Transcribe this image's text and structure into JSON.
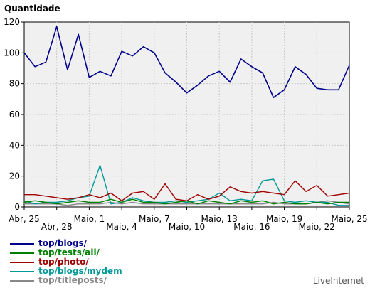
{
  "footer": {
    "brand": "LiveInternet"
  },
  "chart_data": {
    "type": "line",
    "ylabel": "Quantidade",
    "ylim": [
      0,
      120
    ],
    "yticks": [
      0,
      20,
      40,
      60,
      80,
      100,
      120
    ],
    "grid": true,
    "legend_position": "bottom-left",
    "x_tick_labels": [
      "Abr, 25",
      "Abr, 28",
      "Maio, 1",
      "Maio, 4",
      "Maio, 7",
      "Maio, 10",
      "Maio, 13",
      "Maio, 16",
      "Maio, 19",
      "Maio, 22",
      "Maio, 25"
    ],
    "x_tick_label_rows": [
      0,
      1,
      0,
      1,
      0,
      1,
      0,
      1,
      0,
      1,
      0
    ],
    "x_tick_indices": [
      0,
      3,
      6,
      9,
      12,
      15,
      18,
      21,
      24,
      27,
      30
    ],
    "series": [
      {
        "name": "top/blogs/",
        "color": "#00008b",
        "values": [
          100,
          91,
          94,
          117,
          89,
          112,
          84,
          88,
          85,
          101,
          98,
          104,
          100,
          87,
          81,
          74,
          79,
          85,
          88,
          81,
          96,
          91,
          87,
          71,
          76,
          91,
          86,
          77,
          76,
          76,
          92
        ]
      },
      {
        "name": "top/tests/all/",
        "color": "#008000",
        "values": [
          3,
          4,
          3,
          2,
          3,
          4,
          3,
          3,
          5,
          3,
          5,
          3,
          3,
          2,
          3,
          4,
          2,
          4,
          3,
          2,
          4,
          3,
          4,
          2,
          3,
          2,
          2,
          3,
          2,
          3,
          3
        ]
      },
      {
        "name": "top/photo/",
        "color": "#a00000",
        "values": [
          8,
          8,
          7,
          6,
          5,
          6,
          8,
          6,
          9,
          4,
          9,
          10,
          5,
          15,
          5,
          4,
          8,
          5,
          7,
          13,
          10,
          9,
          10,
          9,
          8,
          17,
          10,
          14,
          7,
          8,
          9
        ]
      },
      {
        "name": "top/blogs/mydem",
        "color": "#009999",
        "values": [
          4,
          2,
          3,
          3,
          4,
          6,
          7,
          27,
          2,
          3,
          6,
          4,
          3,
          3,
          4,
          3,
          4,
          5,
          9,
          4,
          5,
          4,
          17,
          18,
          4,
          3,
          4,
          3,
          3,
          1,
          1
        ]
      },
      {
        "name": "top/titleposts/",
        "color": "#888888",
        "values": [
          2,
          2,
          2,
          2,
          1,
          2,
          2,
          2,
          3,
          2,
          3,
          2,
          2,
          2,
          2,
          2,
          2,
          2,
          2,
          2,
          2,
          2,
          2,
          3,
          2,
          2,
          2,
          3,
          4,
          3,
          2
        ]
      }
    ]
  }
}
